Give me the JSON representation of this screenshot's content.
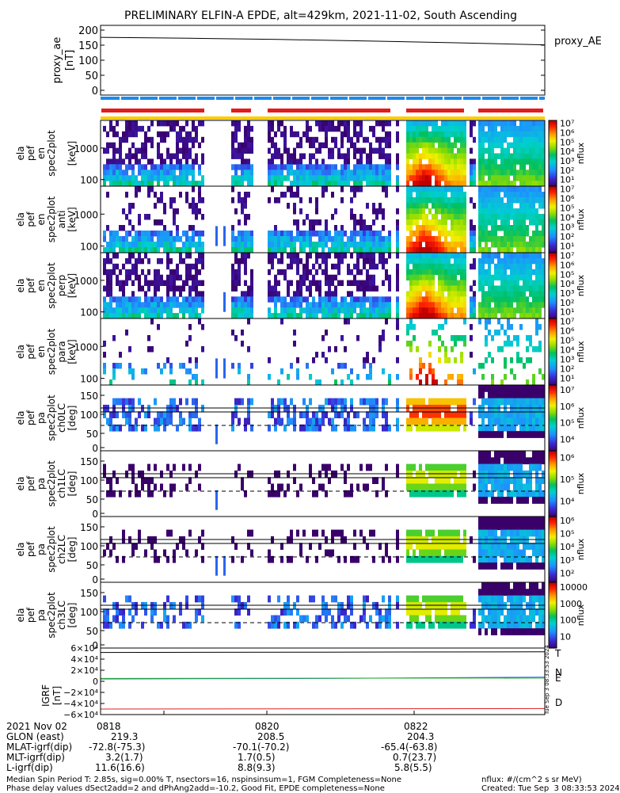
{
  "title": "PRELIMINARY ELFIN-A EPDE, alt=429km, 2021-11-02, South Ascending",
  "chart_data": [
    {
      "type": "line",
      "panel": "proxy_ae",
      "ylabel": "proxy_ae [nT]",
      "ylim": [
        0,
        200
      ],
      "yticks": [
        "200",
        "150",
        "100",
        "50",
        "0"
      ],
      "legend": "proxy_AE",
      "series": [
        {
          "name": "proxy_AE",
          "x": [
            0,
            0.2,
            0.4,
            0.6,
            0.8,
            1.0
          ],
          "values": [
            176,
            173,
            169,
            164,
            158,
            151
          ]
        }
      ]
    },
    {
      "type": "heatmap",
      "panel": "pef_en_all",
      "ylabel": [
        "ela",
        "pef",
        "en",
        "spec2plot",
        "[keV]"
      ],
      "yticks": [
        "1000",
        "100"
      ],
      "colorbar": {
        "label": "nflux",
        "ticks": [
          "10⁷",
          "10⁶",
          "10⁵",
          "10⁴",
          "10³",
          "10²",
          "10¹"
        ]
      }
    },
    {
      "type": "heatmap",
      "panel": "pef_en_anti",
      "ylabel": [
        "ela",
        "pef",
        "en",
        "spec2plot",
        "anti",
        "[keV]"
      ],
      "yticks": [
        "1000",
        "100"
      ],
      "colorbar": {
        "label": "nflux",
        "ticks": [
          "10⁷",
          "10⁶",
          "10⁵",
          "10⁴",
          "10³",
          "10²",
          "10¹"
        ]
      }
    },
    {
      "type": "heatmap",
      "panel": "pef_en_perp",
      "ylabel": [
        "ela",
        "pef",
        "en",
        "spec2plot",
        "perp",
        "[keV]"
      ],
      "yticks": [
        "1000",
        "100"
      ],
      "colorbar": {
        "label": "nflux",
        "ticks": [
          "10⁷",
          "10⁶",
          "10⁵",
          "10⁴",
          "10³",
          "10²",
          "10¹"
        ]
      }
    },
    {
      "type": "heatmap",
      "panel": "pef_en_para",
      "ylabel": [
        "ela",
        "pef",
        "en",
        "spec2plot",
        "para",
        "[keV]"
      ],
      "yticks": [
        "1000",
        "100"
      ],
      "colorbar": {
        "label": "nflux",
        "ticks": [
          "10⁷",
          "10⁶",
          "10⁵",
          "10⁴",
          "10³",
          "10²",
          "10¹"
        ]
      }
    },
    {
      "type": "heatmap",
      "panel": "pa_ch0",
      "ylabel": [
        "ela",
        "pef",
        "pa",
        "spec2plot",
        "ch0LC",
        "[deg]"
      ],
      "yticks": [
        "150",
        "100",
        "50",
        "0"
      ],
      "colorbar": {
        "label": "nflux",
        "ticks": [
          "10⁷",
          "10⁶",
          "10⁵",
          "10⁴"
        ]
      }
    },
    {
      "type": "heatmap",
      "panel": "pa_ch1",
      "ylabel": [
        "ela",
        "pef",
        "pa",
        "spec2plot",
        "ch1LC",
        "[deg]"
      ],
      "yticks": [
        "150",
        "100",
        "50",
        "0"
      ],
      "colorbar": {
        "label": "nflux",
        "ticks": [
          "10⁶",
          "10⁵",
          "10⁴"
        ]
      }
    },
    {
      "type": "heatmap",
      "panel": "pa_ch2",
      "ylabel": [
        "ela",
        "pef",
        "pa",
        "spec2plot",
        "ch2LC",
        "[deg]"
      ],
      "yticks": [
        "150",
        "100",
        "50",
        "0"
      ],
      "colorbar": {
        "label": "nflux",
        "ticks": [
          "10⁶",
          "10⁵",
          "10⁴",
          "10³",
          "10²"
        ]
      }
    },
    {
      "type": "heatmap",
      "panel": "pa_ch3",
      "ylabel": [
        "ela",
        "pef",
        "pa",
        "spec2plot",
        "ch3LC",
        "[deg]"
      ],
      "yticks": [
        "150",
        "100",
        "50",
        "0"
      ],
      "colorbar": {
        "label": "nflux",
        "ticks": [
          "10000",
          "1000",
          "100",
          "10"
        ]
      }
    },
    {
      "type": "line",
      "panel": "igrf",
      "ylabel": "IGRF [nT]",
      "yticks": [
        "6×10⁴",
        "4×10⁴",
        "2×10⁴",
        "0",
        "−2×10⁴",
        "−4×10⁴",
        "−6×10⁴"
      ],
      "ylim": [
        -60000,
        60000
      ],
      "series": [
        {
          "name": "T",
          "color": "#000000",
          "values": [
            52000,
            52600,
            53200
          ]
        },
        {
          "name": "N",
          "color": "#2b6cf0",
          "values": [
            4200,
            5200,
            7600
          ]
        },
        {
          "name": "E",
          "color": "#22aa22",
          "values": [
            5200,
            5500,
            5800
          ]
        },
        {
          "name": "D",
          "color": "#e02020",
          "values": [
            -50000,
            -49600,
            -49200
          ]
        }
      ]
    }
  ],
  "colors": {
    "red": "#e21c1c",
    "blue": "#1a8cf0",
    "yellow": "#ffcc00"
  },
  "side_stamp": "Tue Sep  3 08:33:53 2024",
  "ephemeris": {
    "time": {
      "label": "2021 Nov 02",
      "v1": "0818",
      "v2": "0820",
      "v3": "0822"
    },
    "glon": {
      "label": "GLON (east)",
      "v1": "219.3",
      "v2": "208.5",
      "v3": "204.3"
    },
    "mlat": {
      "label": "MLAT-igrf(dip)",
      "v1": "-72.8(-75.3)",
      "v2": "-70.1(-70.2)",
      "v3": "-65.4(-63.8)"
    },
    "mlt": {
      "label": "MLT-igrf(dip)",
      "v1": "3.2(1.7)",
      "v2": "1.7(0.5)",
      "v3": "0.7(23.7)"
    },
    "lshell": {
      "label": "L-igrf(dip)",
      "v1": "11.6(16.6)",
      "v2": "8.8(9.3)",
      "v3": "5.8(5.5)"
    }
  },
  "footer": {
    "line1": "Median Spin Period T: 2.85s, sig=0.00% T, nsectors=16, nspinsinsum=1, FGM Completeness=None",
    "line2": "Phase delay values dSect2add=2 and dPhAng2add=-10.2, Good Fit, EPDE completeness=None",
    "units": "nflux: #/(cm^2 s sr MeV)",
    "created": "Created: Tue Sep  3 08:33:53 2024"
  }
}
